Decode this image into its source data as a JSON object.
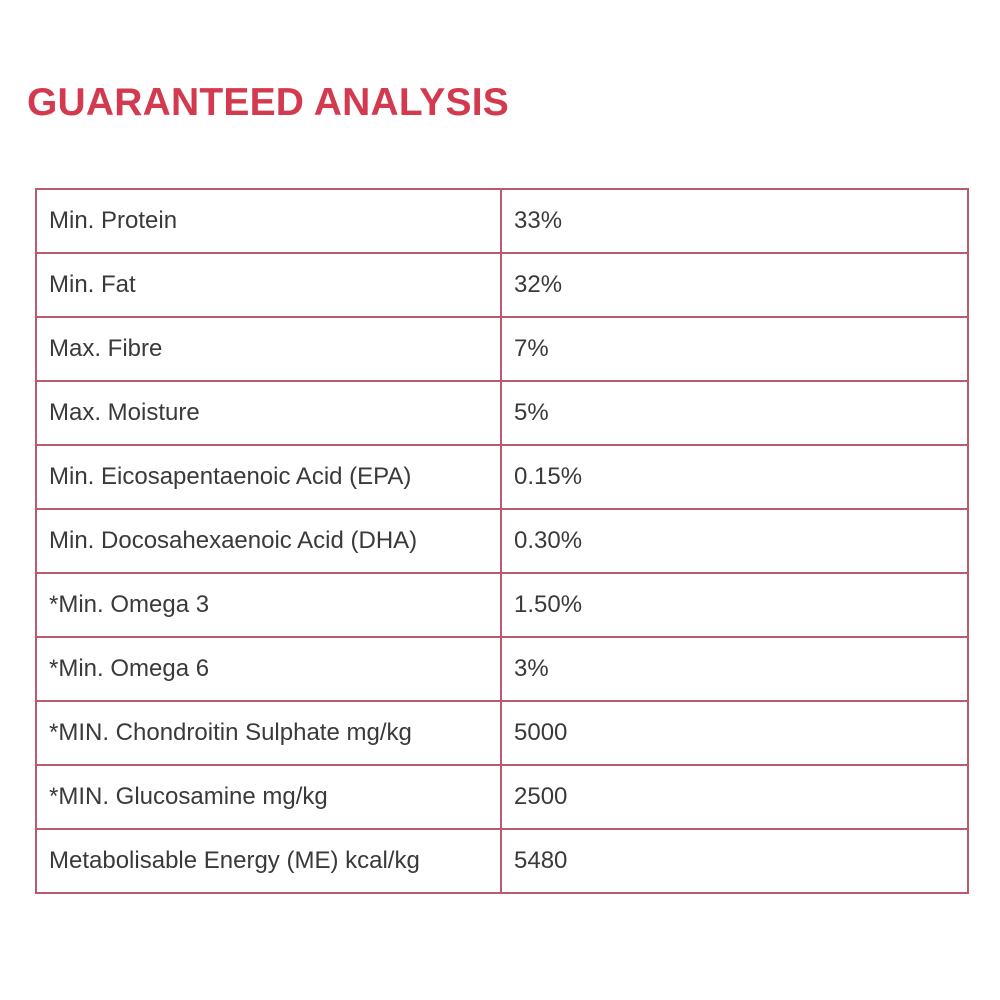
{
  "colors": {
    "title": "#d33a4f",
    "border": "#b95a6e",
    "text": "#3a3a3a"
  },
  "title": "GUARANTEED ANALYSIS",
  "rows": [
    {
      "label": "Min. Protein",
      "value": "33%"
    },
    {
      "label": "Min. Fat",
      "value": "32%"
    },
    {
      "label": "Max. Fibre",
      "value": "7%"
    },
    {
      "label": "Max. Moisture",
      "value": "5%"
    },
    {
      "label": "Min. Eicosapentaenoic Acid (EPA)",
      "value": "0.15%"
    },
    {
      "label": "Min. Docosahexaenoic Acid (DHA)",
      "value": "0.30%"
    },
    {
      "label": "*Min. Omega 3",
      "value": "1.50%"
    },
    {
      "label": "*Min. Omega 6",
      "value": "3%"
    },
    {
      "label": "*MIN. Chondroitin Sulphate mg/kg",
      "value": "5000"
    },
    {
      "label": "*MIN. Glucosamine mg/kg",
      "value": "2500"
    },
    {
      "label": "Metabolisable Energy (ME) kcal/kg",
      "value": "5480"
    }
  ]
}
